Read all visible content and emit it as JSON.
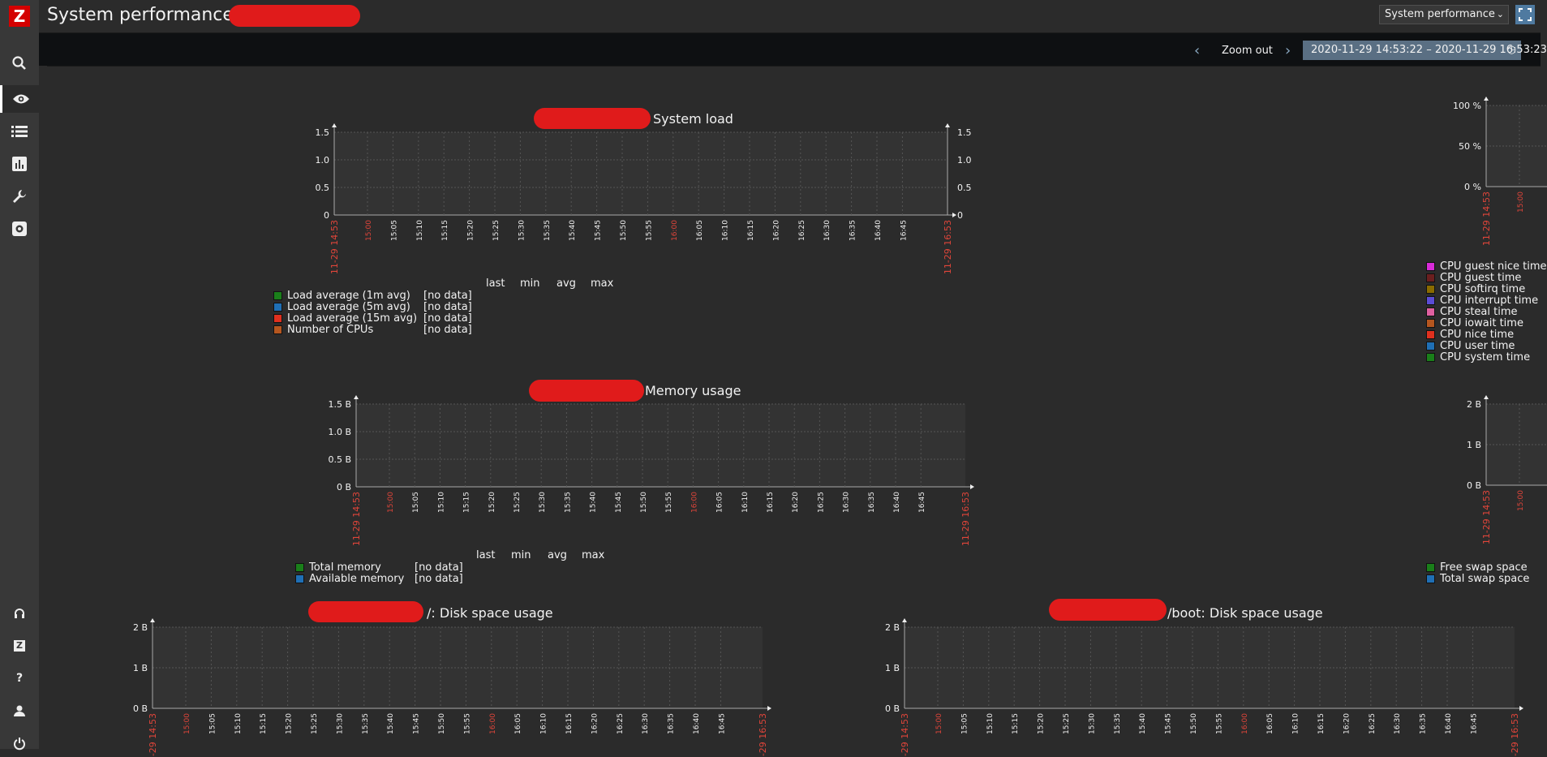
{
  "app": {
    "page_title": "System performance on",
    "view_select": "System performance",
    "zoom_out": "Zoom out",
    "time_range": "2020-11-29 14:53:22 – 2020-11-29 16:53:23"
  },
  "sidebar": {
    "items": [
      {
        "icon": "search-icon"
      },
      {
        "icon": "eye-icon"
      },
      {
        "icon": "list-icon"
      },
      {
        "icon": "bar-chart-icon"
      },
      {
        "icon": "wrench-icon"
      },
      {
        "icon": "gear-icon"
      }
    ],
    "bottom": [
      {
        "icon": "headset-icon"
      },
      {
        "icon": "zabbix-share-icon",
        "label": "Z"
      },
      {
        "icon": "help-icon",
        "label": "?"
      },
      {
        "icon": "user-icon"
      },
      {
        "icon": "power-icon"
      }
    ]
  },
  "x_ticks": [
    "11-29 14:53",
    "15:00",
    "15:05",
    "15:10",
    "15:15",
    "15:20",
    "15:25",
    "15:30",
    "15:35",
    "15:40",
    "15:45",
    "15:50",
    "15:55",
    "16:00",
    "16:05",
    "16:10",
    "16:15",
    "16:20",
    "16:25",
    "16:30",
    "16:35",
    "16:40",
    "16:45",
    "11-29 16:53"
  ],
  "x_ticks_short": [
    "11-29 14:53",
    "15:00"
  ],
  "legend_headers": {
    "last": "last",
    "min": "min",
    "avg": "avg",
    "max": "max"
  },
  "graphs": {
    "system_load": {
      "title": "System load",
      "y_ticks": [
        "1.5",
        "1.0",
        "0.5",
        "0"
      ],
      "legend": [
        {
          "label": "Load average (1m avg)",
          "value": "[no data]",
          "color": "#1a7f1a"
        },
        {
          "label": "Load average (5m avg)",
          "value": "[no data]",
          "color": "#1f6fb5"
        },
        {
          "label": "Load average (15m avg)",
          "value": "[no data]",
          "color": "#e0301e"
        },
        {
          "label": "Number of CPUs",
          "value": "[no data]",
          "color": "#b5561f"
        }
      ]
    },
    "cpu": {
      "y_ticks": [
        "100 %",
        "50 %",
        "0 %"
      ],
      "legend": [
        {
          "label": "CPU guest nice time",
          "color": "#d92bd9"
        },
        {
          "label": "CPU guest time",
          "color": "#6b1f1f"
        },
        {
          "label": "CPU softirq time",
          "color": "#8a6b00"
        },
        {
          "label": "CPU interrupt time",
          "color": "#5b4cd6"
        },
        {
          "label": "CPU steal time",
          "color": "#e060a0"
        },
        {
          "label": "CPU iowait time",
          "color": "#b5561f"
        },
        {
          "label": "CPU nice time",
          "color": "#e0301e"
        },
        {
          "label": "CPU user time",
          "color": "#1f6fb5"
        },
        {
          "label": "CPU system time",
          "color": "#1a7f1a"
        }
      ]
    },
    "memory": {
      "title": "Memory usage",
      "y_ticks": [
        "1.5 B",
        "1.0 B",
        "0.5 B",
        "0 B"
      ],
      "legend": [
        {
          "label": "Total memory",
          "value": "[no data]",
          "color": "#1a7f1a"
        },
        {
          "label": "Available memory",
          "value": "[no data]",
          "color": "#1f6fb5"
        }
      ]
    },
    "swap": {
      "y_ticks": [
        "2 B",
        "1 B",
        "0 B"
      ],
      "legend": [
        {
          "label": "Free swap space",
          "color": "#1a7f1a"
        },
        {
          "label": "Total swap space",
          "color": "#1f6fb5"
        }
      ]
    },
    "disk_root": {
      "title": "/: Disk space usage",
      "y_ticks": [
        "2 B",
        "1 B",
        "0 B"
      ]
    },
    "disk_boot": {
      "title": "/boot: Disk space usage",
      "y_ticks": [
        "2 B",
        "1 B",
        "0 B"
      ]
    }
  }
}
